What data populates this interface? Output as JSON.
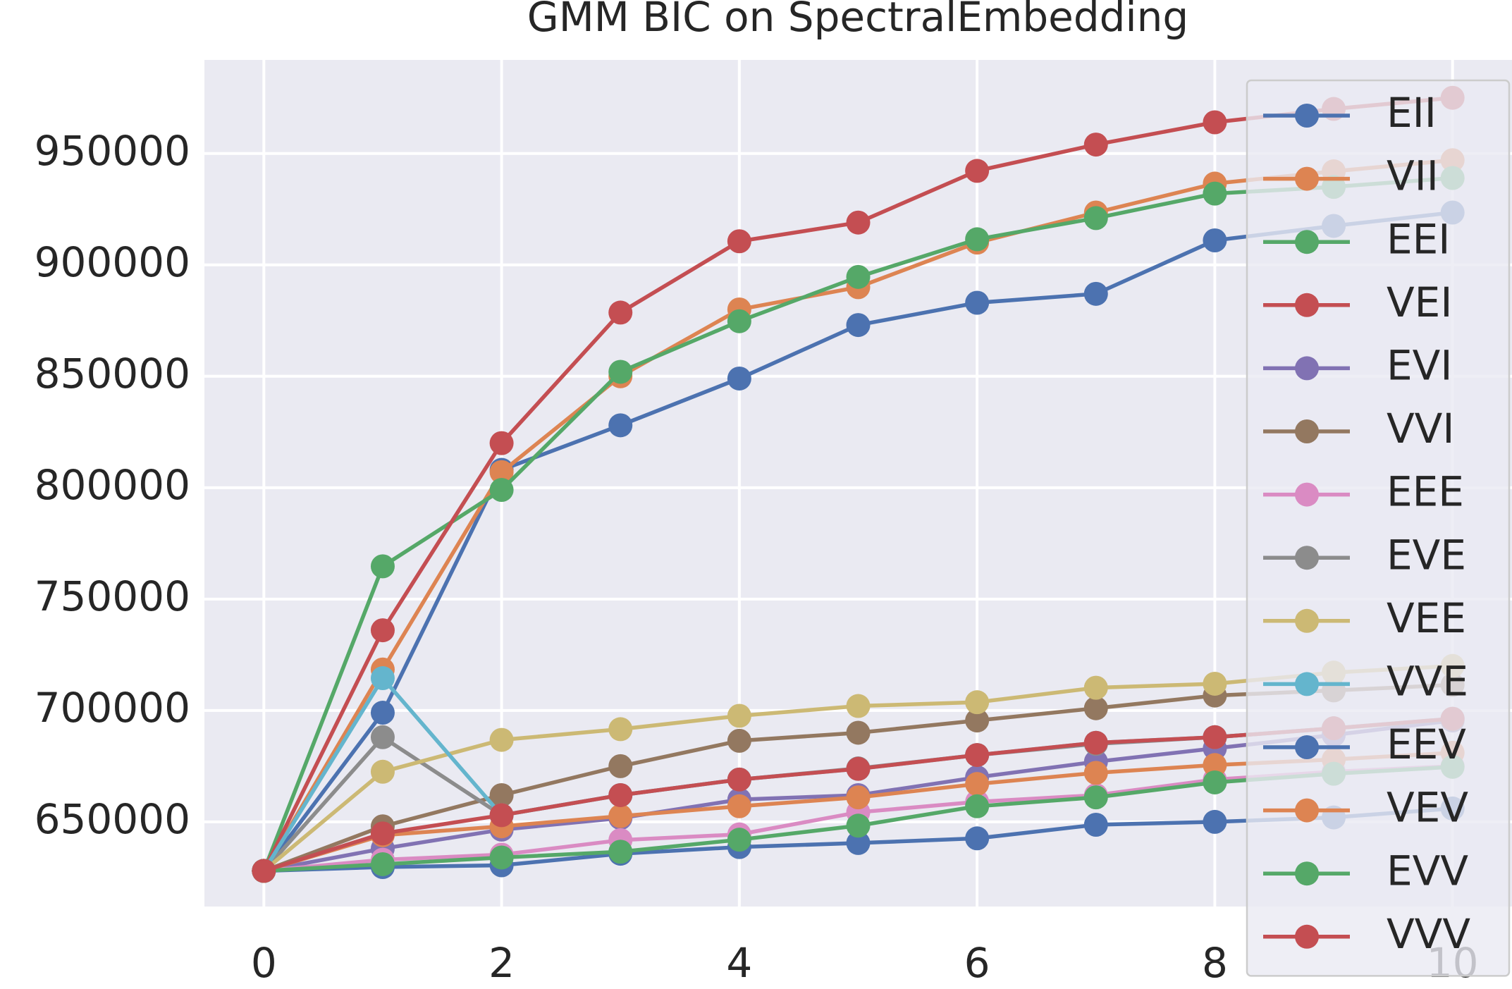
{
  "chart_data": {
    "type": "line",
    "title": "GMM BIC on SpectralEmbedding",
    "x": [
      0,
      1,
      2,
      3,
      4,
      5,
      6,
      7,
      8,
      9,
      10
    ],
    "xlim": [
      -0.5,
      10.5
    ],
    "xticks": [
      0,
      2,
      4,
      6,
      8,
      10
    ],
    "ylim": [
      612000,
      992000
    ],
    "yticks": [
      650000,
      700000,
      750000,
      800000,
      850000,
      900000,
      950000
    ],
    "grid": true,
    "legend": "upper right",
    "series": [
      {
        "name": "EII",
        "color": "#4c72b0",
        "values": [
          628000,
          699000,
          808000,
          828000,
          849000,
          873000,
          883000,
          887000,
          911000,
          917500,
          923500
        ]
      },
      {
        "name": "VII",
        "color": "#dd8452",
        "values": [
          628000,
          718400,
          807000,
          850000,
          880000,
          890000,
          910000,
          923500,
          936500,
          942000,
          947000
        ]
      },
      {
        "name": "EEI",
        "color": "#55a868",
        "values": [
          628000,
          764700,
          799000,
          852000,
          874700,
          894600,
          911500,
          921000,
          932000,
          935000,
          939000
        ]
      },
      {
        "name": "VEI",
        "color": "#c44e52",
        "values": [
          628000,
          736000,
          820000,
          878600,
          910600,
          919000,
          942200,
          954000,
          964000,
          970000,
          975000
        ]
      },
      {
        "name": "EVI",
        "color": "#8172b3",
        "values": [
          628000,
          638000,
          646500,
          651700,
          660000,
          662000,
          670000,
          677000,
          683000,
          689000,
          695500
        ]
      },
      {
        "name": "VVI",
        "color": "#937860",
        "values": [
          628000,
          648000,
          662000,
          675000,
          686400,
          690000,
          695500,
          701000,
          706700,
          709000,
          711500
        ]
      },
      {
        "name": "EEE",
        "color": "#da8bc3",
        "values": [
          628000,
          633000,
          635300,
          641800,
          644400,
          654300,
          659000,
          662000,
          669000,
          672500,
          675000
        ]
      },
      {
        "name": "EVE",
        "color": "#8c8c8c",
        "values": [
          628000,
          688000,
          653000,
          662000,
          669000,
          674000,
          680000,
          685000,
          688000,
          692000,
          696000
        ]
      },
      {
        "name": "VEE",
        "color": "#ccb974",
        "values": [
          628000,
          672500,
          686800,
          691600,
          697600,
          702000,
          703700,
          710200,
          712000,
          717000,
          720000
        ]
      },
      {
        "name": "VVE",
        "color": "#64b5cd",
        "values": [
          628000,
          714500,
          653000,
          662000,
          669000,
          673800,
          680000,
          685500,
          688000,
          692000,
          696300
        ]
      },
      {
        "name": "EEV",
        "color": "#4c72b0",
        "values": [
          628000,
          629700,
          630500,
          635700,
          638700,
          640500,
          642600,
          648700,
          650000,
          652000,
          656000
        ]
      },
      {
        "name": "VEV",
        "color": "#dd8452",
        "values": [
          628000,
          644000,
          648000,
          652600,
          657000,
          661000,
          667000,
          672000,
          675500,
          678000,
          681000
        ]
      },
      {
        "name": "EVV",
        "color": "#55a868",
        "values": [
          628000,
          631000,
          634000,
          636600,
          642000,
          648300,
          657000,
          661000,
          667700,
          671600,
          674700
        ]
      },
      {
        "name": "VVV",
        "color": "#c44e52",
        "values": [
          628000,
          644800,
          653000,
          662000,
          669000,
          673800,
          680000,
          685500,
          688000,
          692000,
          696300
        ]
      }
    ]
  }
}
